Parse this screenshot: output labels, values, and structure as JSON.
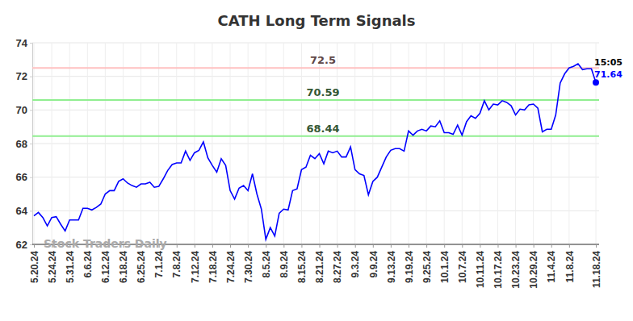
{
  "chart_data": {
    "type": "line",
    "title": "CATH Long Term Signals",
    "watermark": "Stock Traders Daily",
    "color": "#0000ff",
    "grid": true,
    "categories": [
      "5.20.24",
      null,
      null,
      null,
      "5.24.24",
      null,
      null,
      null,
      "5.31.24",
      null,
      null,
      null,
      "6.6.24",
      null,
      null,
      null,
      "6.12.24",
      null,
      null,
      null,
      "6.18.24",
      null,
      null,
      null,
      "6.25.24",
      null,
      null,
      null,
      "7.1.24",
      null,
      null,
      null,
      "7.8.24",
      null,
      null,
      null,
      "7.12.24",
      null,
      null,
      null,
      "7.18.24",
      null,
      null,
      null,
      "7.24.24",
      null,
      null,
      null,
      "7.30.24",
      null,
      null,
      null,
      "8.5.24",
      null,
      null,
      null,
      "8.9.24",
      null,
      null,
      null,
      "8.15.24",
      null,
      null,
      null,
      "8.21.24",
      null,
      null,
      null,
      "8.27.24",
      null,
      null,
      null,
      "9.3.24",
      null,
      null,
      null,
      "9.9.24",
      null,
      null,
      null,
      "9.13.24",
      null,
      null,
      null,
      "9.19.24",
      null,
      null,
      null,
      "9.25.24",
      null,
      null,
      null,
      "10.1.24",
      null,
      null,
      null,
      "10.7.24",
      null,
      null,
      null,
      "10.11.24",
      null,
      null,
      null,
      "10.17.24",
      null,
      null,
      null,
      "10.23.24",
      null,
      null,
      null,
      "10.29.24",
      null,
      null,
      null,
      "11.4.24",
      null,
      null,
      null,
      "11.8.24",
      null,
      null,
      null,
      null,
      null,
      "11.18.24"
    ],
    "values": [
      63.7,
      63.9,
      63.6,
      63.1,
      63.6,
      63.65,
      63.2,
      62.8,
      63.45,
      63.45,
      63.45,
      64.15,
      64.15,
      64.05,
      64.2,
      64.4,
      65.0,
      65.2,
      65.2,
      65.75,
      65.9,
      65.65,
      65.5,
      65.4,
      65.6,
      65.6,
      65.7,
      65.4,
      65.45,
      65.9,
      66.4,
      66.75,
      66.85,
      66.85,
      67.55,
      67.0,
      67.45,
      67.6,
      68.1,
      67.15,
      66.7,
      66.3,
      67.1,
      66.7,
      65.2,
      64.7,
      65.35,
      65.5,
      65.2,
      66.2,
      65.0,
      64.1,
      62.3,
      63.0,
      62.5,
      63.85,
      64.1,
      64.05,
      65.2,
      65.3,
      66.45,
      66.6,
      67.3,
      67.1,
      67.4,
      66.8,
      67.55,
      67.45,
      67.55,
      67.2,
      67.2,
      67.8,
      66.45,
      66.2,
      66.1,
      64.95,
      65.75,
      66.0,
      66.6,
      67.2,
      67.6,
      67.7,
      67.7,
      67.55,
      68.75,
      68.5,
      68.75,
      68.85,
      68.75,
      69.05,
      69.0,
      69.35,
      68.65,
      68.65,
      68.55,
      69.1,
      68.5,
      69.3,
      69.65,
      69.5,
      69.8,
      70.55,
      70.0,
      70.35,
      70.3,
      70.55,
      70.45,
      70.25,
      69.7,
      70.05,
      70.0,
      70.3,
      70.35,
      70.1,
      68.7,
      68.85,
      68.85,
      69.7,
      71.6,
      72.15,
      72.5,
      72.6,
      72.75,
      72.4,
      72.45,
      72.45,
      71.64
    ],
    "ylim": [
      62,
      74
    ],
    "yticks": [
      62,
      64,
      66,
      68,
      70,
      72,
      74
    ],
    "levels": [
      {
        "value": 72.5,
        "label": "72.5",
        "color": "#ffc0c0"
      },
      {
        "value": 70.59,
        "label": "70.59",
        "color": "#90ee90"
      },
      {
        "value": 68.44,
        "label": "68.44",
        "color": "#90ee90"
      }
    ],
    "last_point": {
      "time": "15:05",
      "value": 71.64
    }
  }
}
